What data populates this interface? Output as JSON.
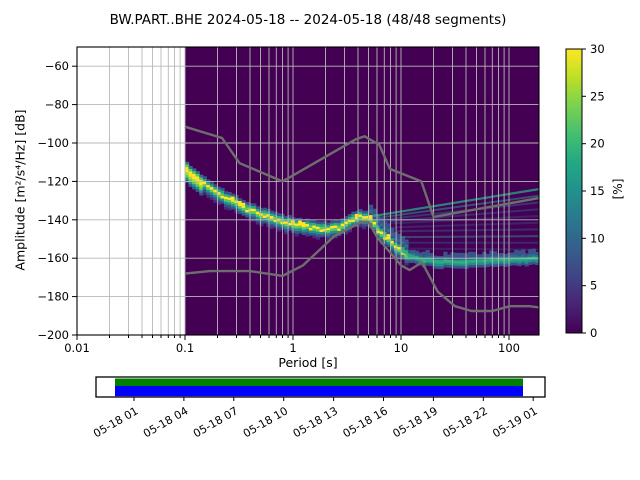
{
  "title": "BW.PART..BHE   2024-05-18 -- 2024-05-18  (48/48 segments)",
  "axes": {
    "xlabel": "Period [s]",
    "ylabel": "Amplitude [m²/s⁴/Hz] [dB]",
    "x_tick_labels": [
      "0.01",
      "0.1",
      "1",
      "10",
      "100"
    ],
    "x_tick_values": [
      0.01,
      0.1,
      1,
      10,
      100
    ],
    "y_tick_labels": [
      "−60",
      "−80",
      "−100",
      "−120",
      "−140",
      "−160",
      "−180",
      "−200"
    ],
    "y_tick_values": [
      -60,
      -80,
      -100,
      -120,
      -140,
      -160,
      -180,
      -200
    ],
    "xlim": [
      0.01,
      189
    ],
    "ylim": [
      -200,
      -50
    ],
    "xscale": "log",
    "grid": true,
    "grid_color": "#b8b8b8"
  },
  "colorbar": {
    "label": "[%]",
    "min": 0,
    "max": 30,
    "tick_labels": [
      "0",
      "5",
      "10",
      "15",
      "20",
      "25",
      "30"
    ],
    "tick_values": [
      0,
      5,
      10,
      15,
      20,
      25,
      30
    ],
    "colormap": "viridis",
    "stops": [
      [
        0,
        "#440154"
      ],
      [
        0.1,
        "#482475"
      ],
      [
        0.2,
        "#414487"
      ],
      [
        0.3,
        "#355f8d"
      ],
      [
        0.4,
        "#2a788e"
      ],
      [
        0.5,
        "#21918c"
      ],
      [
        0.6,
        "#22a884"
      ],
      [
        0.7,
        "#44bf70"
      ],
      [
        0.8,
        "#7ad151"
      ],
      [
        0.9,
        "#bddf26"
      ],
      [
        1,
        "#fde725"
      ]
    ]
  },
  "chart_data": {
    "type": "heatmap",
    "title": "BW.PART..BHE   2024-05-18 -- 2024-05-18  (48/48 segments)",
    "xlabel": "Period [s]",
    "ylabel": "Amplitude [m²/s⁴/Hz] [dB]",
    "xscale": "log",
    "xlim": [
      0.01,
      189
    ],
    "ylim": [
      -200,
      -50
    ],
    "histogram_period_range": [
      0.1,
      189
    ],
    "histogram_background": "#440154",
    "prob_palette": [
      "#440154",
      "#472d7b",
      "#3b528b",
      "#2c728e",
      "#21918c",
      "#27ad81",
      "#5ec962",
      "#aadc32",
      "#fde725"
    ],
    "ppsd_mode_curve_db": [
      [
        0.1,
        -113
      ],
      [
        0.13,
        -118
      ],
      [
        0.18,
        -124
      ],
      [
        0.25,
        -129
      ],
      [
        0.35,
        -133
      ],
      [
        0.5,
        -136.5
      ],
      [
        0.7,
        -139.5
      ],
      [
        1.0,
        -142
      ],
      [
        1.4,
        -143.5
      ],
      [
        2.0,
        -144.5
      ],
      [
        2.8,
        -143.5
      ],
      [
        3.5,
        -140
      ],
      [
        4.2,
        -138
      ],
      [
        5.0,
        -138.5
      ],
      [
        6.0,
        -144
      ],
      [
        7.0,
        -148
      ],
      [
        8.0,
        -151
      ],
      [
        10.0,
        -156
      ],
      [
        12.0,
        -158.5
      ],
      [
        15.0,
        -160.5
      ],
      [
        20.0,
        -161.5
      ],
      [
        30.0,
        -162
      ],
      [
        50.0,
        -161.5
      ],
      [
        80.0,
        -161
      ],
      [
        120.0,
        -160.5
      ],
      [
        189.0,
        -160
      ]
    ],
    "noise_models": {
      "color": "#6e6e6e",
      "nhnm": [
        [
          0.1,
          -91.5
        ],
        [
          0.22,
          -97.4
        ],
        [
          0.32,
          -110.5
        ],
        [
          0.8,
          -120.0
        ],
        [
          3.8,
          -98.1
        ],
        [
          4.6,
          -96.5
        ],
        [
          6.3,
          -101.0
        ],
        [
          7.9,
          -113.5
        ],
        [
          15.4,
          -120.0
        ],
        [
          20.0,
          -138.5
        ],
        [
          189.0,
          -128.7
        ]
      ],
      "nlnm": [
        [
          0.1,
          -168.0
        ],
        [
          0.17,
          -166.7
        ],
        [
          0.4,
          -166.7
        ],
        [
          0.8,
          -169.2
        ],
        [
          1.24,
          -163.7
        ],
        [
          2.4,
          -148.6
        ],
        [
          4.3,
          -141.1
        ],
        [
          5.0,
          -141.1
        ],
        [
          6.0,
          -149.0
        ],
        [
          10.0,
          -163.7
        ],
        [
          12.0,
          -166.2
        ],
        [
          15.6,
          -162.1
        ],
        [
          21.9,
          -177.5
        ],
        [
          31.6,
          -185.0
        ],
        [
          45.0,
          -187.5
        ],
        [
          70.0,
          -187.5
        ],
        [
          101.0,
          -185.0
        ],
        [
          154.0,
          -185.0
        ],
        [
          189.0,
          -185.6
        ]
      ]
    },
    "long_period_streaks": [
      [
        5.5,
        -138,
        189,
        -124,
        "#27a383",
        0.8,
        2.2
      ],
      [
        6,
        -139,
        189,
        -127.5,
        "#2f8e8b",
        0.55,
        2
      ],
      [
        6.5,
        -140,
        189,
        -131,
        "#33628d",
        0.5,
        2
      ],
      [
        7,
        -141,
        189,
        -134.5,
        "#33628d",
        0.45,
        2
      ],
      [
        7.5,
        -142,
        189,
        -138,
        "#39568c",
        0.4,
        2
      ],
      [
        8,
        -144,
        189,
        -141.5,
        "#39568c",
        0.4,
        2
      ],
      [
        9,
        -146,
        189,
        -145,
        "#33628d",
        0.45,
        2
      ],
      [
        10,
        -149,
        189,
        -148.5,
        "#2f8e8b",
        0.5,
        2
      ],
      [
        11,
        -152,
        189,
        -152,
        "#33628d",
        0.4,
        2
      ],
      [
        12,
        -155,
        189,
        -155.5,
        "#39568c",
        0.35,
        2
      ]
    ]
  },
  "timeline": {
    "tick_labels": [
      "05-18 01",
      "05-18 04",
      "05-18 07",
      "05-18 10",
      "05-18 13",
      "05-18 16",
      "05-18 19",
      "05-18 22",
      "05-19 01"
    ],
    "coverage_color": "#008000",
    "extent_color": "#0000ff",
    "frame_color": "#000000"
  }
}
